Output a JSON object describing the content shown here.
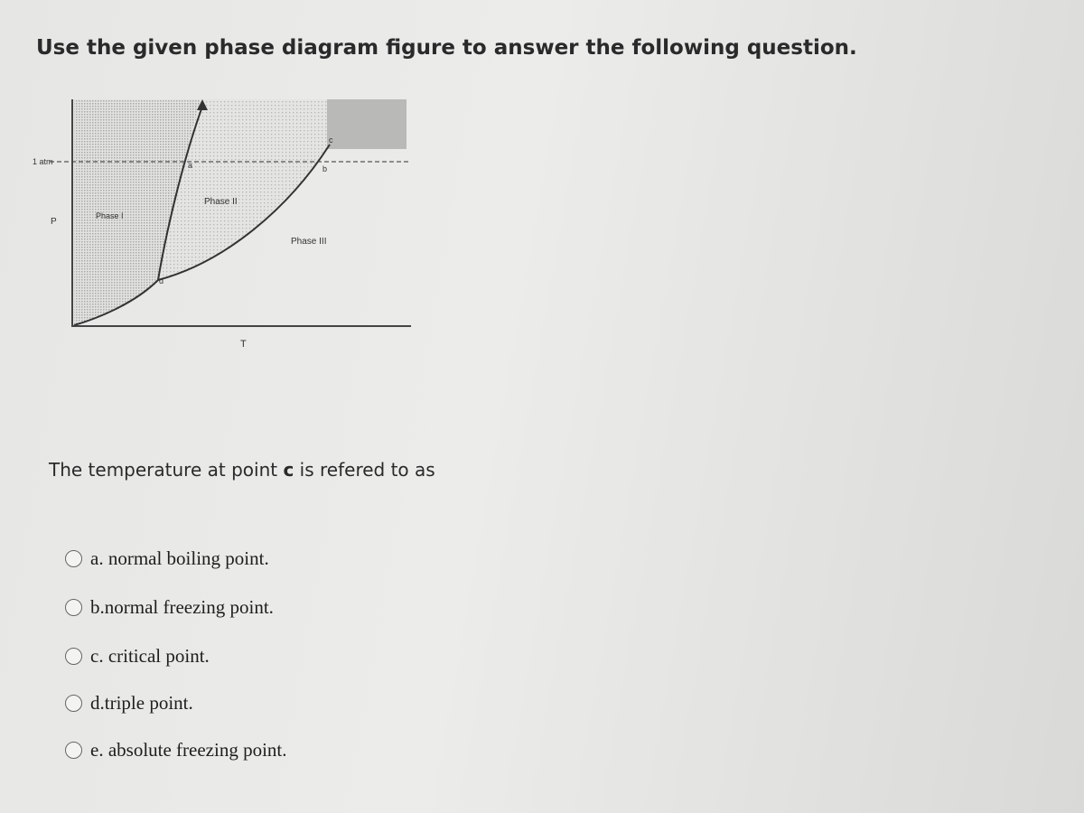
{
  "header": {
    "title": "Use the given phase diagram figure to answer the following question."
  },
  "figure": {
    "axis_labels": {
      "pressure_ref": "1 atm",
      "y": "P",
      "x": "T"
    },
    "regions": [
      "Phase I",
      "Phase II",
      "Phase III"
    ],
    "points": [
      "a",
      "b",
      "c",
      "d"
    ]
  },
  "question": {
    "before": "The temperature at point",
    "emphasis": "c",
    "after": "is refered to as"
  },
  "options": [
    "a. normal boiling point.",
    "b.normal freezing point.",
    "c. critical point.",
    "d.triple point.",
    "e. absolute freezing point."
  ]
}
